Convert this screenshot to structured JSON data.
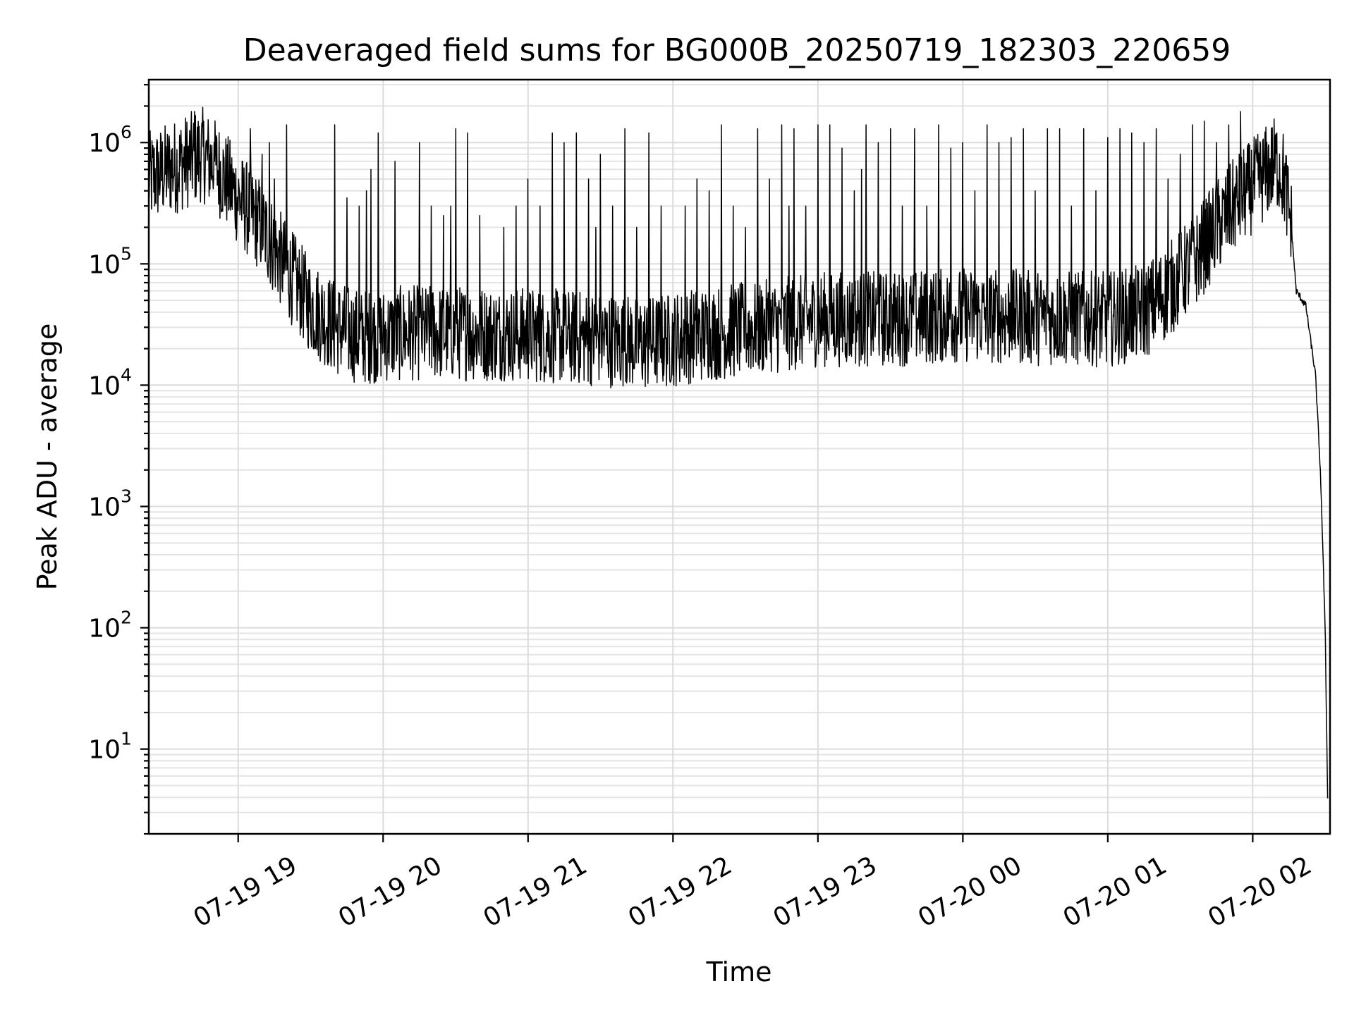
{
  "chart_data": {
    "type": "line",
    "title": "Deaveraged field sums for BG000B_20250719_182303_220659",
    "xlabel": "Time",
    "ylabel": "Peak ADU - average",
    "yscale": "log",
    "xlim": [
      "2025-07-19 18:23",
      "2025-07-20 02:32"
    ],
    "ylim": [
      2,
      3300000
    ],
    "grid": true,
    "legend": "none",
    "line_color": "#000000",
    "x_ticks": [
      {
        "t": "2025-07-19 19:00",
        "label": "07-19 19"
      },
      {
        "t": "2025-07-19 20:00",
        "label": "07-19 20"
      },
      {
        "t": "2025-07-19 21:00",
        "label": "07-19 21"
      },
      {
        "t": "2025-07-19 22:00",
        "label": "07-19 22"
      },
      {
        "t": "2025-07-19 23:00",
        "label": "07-19 23"
      },
      {
        "t": "2025-07-20 00:00",
        "label": "07-20 00"
      },
      {
        "t": "2025-07-20 01:00",
        "label": "07-20 01"
      },
      {
        "t": "2025-07-20 02:00",
        "label": "07-20 02"
      }
    ],
    "y_ticks": [
      {
        "value": 10,
        "base": "10",
        "exp": "1"
      },
      {
        "value": 100,
        "base": "10",
        "exp": "2"
      },
      {
        "value": 1000,
        "base": "10",
        "exp": "3"
      },
      {
        "value": 10000,
        "base": "10",
        "exp": "4"
      },
      {
        "value": 100000,
        "base": "10",
        "exp": "5"
      },
      {
        "value": 1000000,
        "base": "10",
        "exp": "6"
      }
    ],
    "series": [
      {
        "baseline": [
          [
            "2025-07-19 18:23",
            500000
          ],
          [
            "2025-07-19 18:35",
            650000
          ],
          [
            "2025-07-19 18:45",
            800000
          ],
          [
            "2025-07-19 18:52",
            600000
          ],
          [
            "2025-07-19 19:00",
            350000
          ],
          [
            "2025-07-19 19:10",
            200000
          ],
          [
            "2025-07-19 19:20",
            90000
          ],
          [
            "2025-07-19 19:30",
            45000
          ],
          [
            "2025-07-19 19:40",
            30000
          ],
          [
            "2025-07-19 19:50",
            25000
          ],
          [
            "2025-07-19 20:10",
            27000
          ],
          [
            "2025-07-19 20:30",
            27000
          ],
          [
            "2025-07-19 21:00",
            26000
          ],
          [
            "2025-07-19 21:30",
            24000
          ],
          [
            "2025-07-19 21:50",
            22000
          ],
          [
            "2025-07-19 22:10",
            26000
          ],
          [
            "2025-07-19 22:40",
            30000
          ],
          [
            "2025-07-19 23:00",
            35000
          ],
          [
            "2025-07-19 23:30",
            35000
          ],
          [
            "2025-07-20 00:00",
            38000
          ],
          [
            "2025-07-20 00:30",
            36000
          ],
          [
            "2025-07-20 01:00",
            35000
          ],
          [
            "2025-07-20 01:15",
            40000
          ],
          [
            "2025-07-20 01:25",
            60000
          ],
          [
            "2025-07-20 01:35",
            100000
          ],
          [
            "2025-07-20 01:45",
            200000
          ],
          [
            "2025-07-20 01:55",
            350000
          ],
          [
            "2025-07-20 02:05",
            550000
          ],
          [
            "2025-07-20 02:10",
            700000
          ],
          [
            "2025-07-20 02:13",
            500000
          ],
          [
            "2025-07-20 02:16",
            200000
          ],
          [
            "2025-07-20 02:18",
            60000
          ],
          [
            "2025-07-20 02:22",
            45000
          ],
          [
            "2025-07-20 02:26",
            12000
          ],
          [
            "2025-07-20 02:28",
            2000
          ],
          [
            "2025-07-20 02:30",
            100
          ],
          [
            "2025-07-20 02:31",
            4
          ]
        ],
        "noise_fraction": 0.18,
        "spikes": [
          [
            "2025-07-19 18:42",
            1800000
          ],
          [
            "2025-07-19 18:50",
            1000000
          ],
          [
            "2025-07-19 19:05",
            1300000
          ],
          [
            "2025-07-19 19:10",
            800000
          ],
          [
            "2025-07-19 19:13",
            1000000
          ],
          [
            "2025-07-19 19:15",
            500000
          ],
          [
            "2025-07-19 19:20",
            1400000
          ],
          [
            "2025-07-19 19:40",
            1400000
          ],
          [
            "2025-07-19 19:45",
            350000
          ],
          [
            "2025-07-19 19:50",
            300000
          ],
          [
            "2025-07-19 19:53",
            400000
          ],
          [
            "2025-07-19 19:55",
            600000
          ],
          [
            "2025-07-19 19:58",
            1200000
          ],
          [
            "2025-07-19 20:05",
            700000
          ],
          [
            "2025-07-19 20:15",
            1000000
          ],
          [
            "2025-07-19 20:20",
            300000
          ],
          [
            "2025-07-19 20:25",
            250000
          ],
          [
            "2025-07-19 20:28",
            300000
          ],
          [
            "2025-07-19 20:30",
            1300000
          ],
          [
            "2025-07-19 20:35",
            1200000
          ],
          [
            "2025-07-19 20:40",
            250000
          ],
          [
            "2025-07-19 20:50",
            200000
          ],
          [
            "2025-07-19 20:55",
            300000
          ],
          [
            "2025-07-19 21:00",
            500000
          ],
          [
            "2025-07-19 21:05",
            300000
          ],
          [
            "2025-07-19 21:10",
            1200000
          ],
          [
            "2025-07-19 21:15",
            1000000
          ],
          [
            "2025-07-19 21:20",
            1200000
          ],
          [
            "2025-07-19 21:25",
            500000
          ],
          [
            "2025-07-19 21:28",
            200000
          ],
          [
            "2025-07-19 21:30",
            800000
          ],
          [
            "2025-07-19 21:35",
            300000
          ],
          [
            "2025-07-19 21:40",
            1300000
          ],
          [
            "2025-07-19 21:45",
            200000
          ],
          [
            "2025-07-19 21:50",
            1200000
          ],
          [
            "2025-07-19 21:55",
            300000
          ],
          [
            "2025-07-19 22:05",
            300000
          ],
          [
            "2025-07-19 22:10",
            500000
          ],
          [
            "2025-07-19 22:15",
            400000
          ],
          [
            "2025-07-19 22:20",
            1400000
          ],
          [
            "2025-07-19 22:25",
            300000
          ],
          [
            "2025-07-19 22:30",
            200000
          ],
          [
            "2025-07-19 22:35",
            1300000
          ],
          [
            "2025-07-19 22:40",
            500000
          ],
          [
            "2025-07-19 22:45",
            1400000
          ],
          [
            "2025-07-19 22:48",
            300000
          ],
          [
            "2025-07-19 22:50",
            1300000
          ],
          [
            "2025-07-19 22:55",
            300000
          ],
          [
            "2025-07-19 23:00",
            1400000
          ],
          [
            "2025-07-19 23:05",
            1400000
          ],
          [
            "2025-07-19 23:10",
            900000
          ],
          [
            "2025-07-19 23:15",
            400000
          ],
          [
            "2025-07-19 23:18",
            600000
          ],
          [
            "2025-07-19 23:20",
            1400000
          ],
          [
            "2025-07-19 23:25",
            1000000
          ],
          [
            "2025-07-19 23:30",
            1300000
          ],
          [
            "2025-07-19 23:35",
            300000
          ],
          [
            "2025-07-19 23:40",
            1300000
          ],
          [
            "2025-07-19 23:45",
            300000
          ],
          [
            "2025-07-19 23:50",
            1400000
          ],
          [
            "2025-07-19 23:55",
            900000
          ],
          [
            "2025-07-20 00:00",
            1000000
          ],
          [
            "2025-07-20 00:05",
            400000
          ],
          [
            "2025-07-20 00:10",
            1400000
          ],
          [
            "2025-07-20 00:15",
            1000000
          ],
          [
            "2025-07-20 00:20",
            1100000
          ],
          [
            "2025-07-20 00:25",
            1300000
          ],
          [
            "2025-07-20 00:30",
            400000
          ],
          [
            "2025-07-20 00:35",
            1300000
          ],
          [
            "2025-07-20 00:40",
            1300000
          ],
          [
            "2025-07-20 00:45",
            300000
          ],
          [
            "2025-07-20 00:50",
            1300000
          ],
          [
            "2025-07-20 00:55",
            400000
          ],
          [
            "2025-07-20 01:00",
            1100000
          ],
          [
            "2025-07-20 01:05",
            1300000
          ],
          [
            "2025-07-20 01:10",
            1200000
          ],
          [
            "2025-07-20 01:15",
            1000000
          ],
          [
            "2025-07-20 01:20",
            1300000
          ],
          [
            "2025-07-20 01:25",
            500000
          ],
          [
            "2025-07-20 01:30",
            800000
          ],
          [
            "2025-07-20 01:35",
            1400000
          ],
          [
            "2025-07-20 01:40",
            1500000
          ],
          [
            "2025-07-20 01:45",
            1000000
          ],
          [
            "2025-07-20 01:50",
            1400000
          ],
          [
            "2025-07-20 01:55",
            1800000
          ],
          [
            "2025-07-20 02:10",
            1200000
          ]
        ]
      }
    ]
  }
}
